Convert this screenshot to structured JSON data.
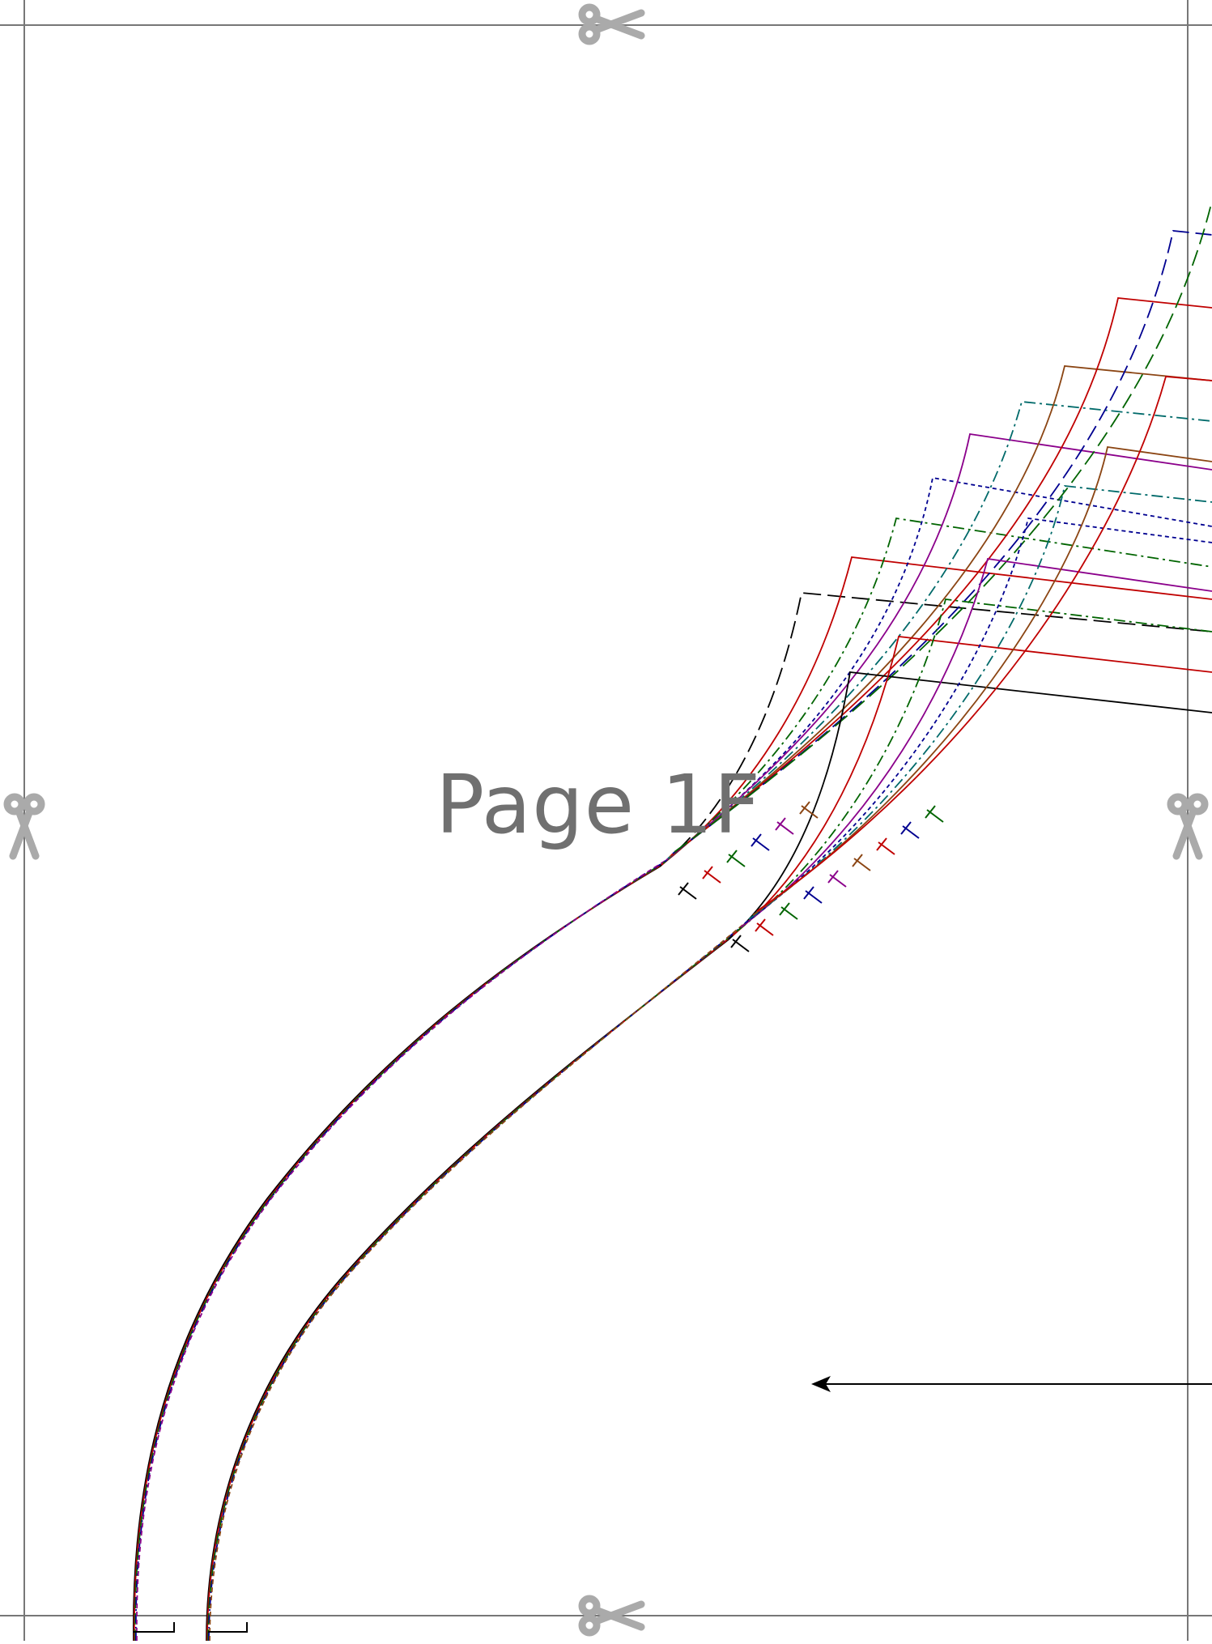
{
  "page": {
    "label": "Page 1F"
  },
  "colors": {
    "border": "#777777",
    "scissors": "#aaaaaa",
    "label": "#707070",
    "size_lines": [
      "#000000",
      "#c00000",
      "#006400",
      "#000090",
      "#8b008b",
      "#8b4513",
      "#006a6a"
    ]
  },
  "icons": [
    "scissors-icon",
    "arrow-left-icon"
  ]
}
